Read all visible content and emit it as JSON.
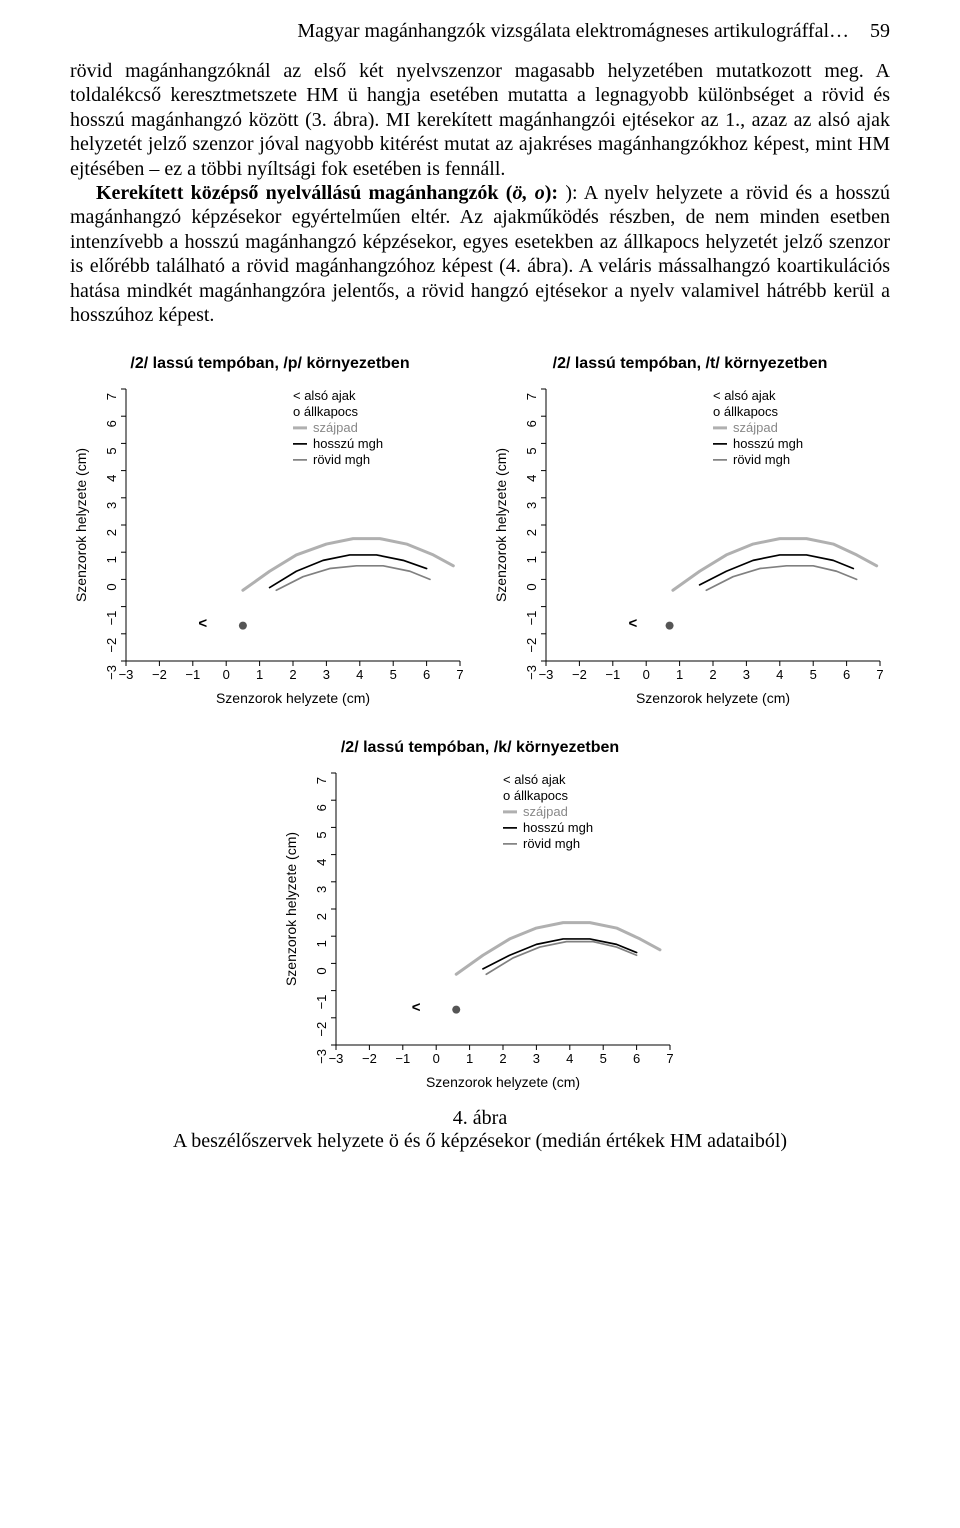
{
  "header": {
    "running_title": "Magyar magánhangzók vizsgálata elektromágneses artikulográffal…",
    "page_number": "59"
  },
  "paragraphs": {
    "p1": "rövid magánhangzóknál az első két nyelvszenzor magasabb helyzetében mutatkozott meg. A toldalékcső keresztmetszete HM ü hangja esetében mutatta a legnagyobb különbséget a rövid és hosszú magánhangzó között (3. ábra). MI kerekített magánhangzói ejtésekor az 1., azaz az alsó ajak helyzetét jelző szenzor jóval nagyobb kitérést mutat az ajakréses magánhangzókhoz képest, mint HM ejtésében – ez a többi nyíltsági fok esetében is fennáll.",
    "p2_lead": "Kerekített középső nyelvállású magánhangzók (",
    "p2_ital": "ö, o",
    "p2_rest": "): A nyelv helyzete a rövid és a hosszú magánhangzó képzésekor egyértelműen eltér. Az ajakműködés részben, de nem minden esetben intenzívebb a hosszú magánhangzó képzésekor, egyes esetekben az állkapocs helyzetét jelző szenzor is előrébb található a rövid magánhangzóhoz képest (4. ábra). A veláris mássalhangzó koartikulációs hatása mindkét magánhangzóra jelentős, a rövid hangzó ejtésekor a nyelv valamivel hátrébb kerül a hosszúhoz képest."
  },
  "caption": {
    "fig_num": "4. ábra",
    "fig_text": "A beszélőszervek helyzete ö és ő képzésekor (medián értékek HM adataiból)"
  },
  "chart_common": {
    "x_label": "Szenzorok helyzete (cm)",
    "y_label": "Szenzorok helyzete (cm)",
    "ticks": [
      "−3",
      "−2",
      "−1",
      "0",
      "1",
      "2",
      "3",
      "4",
      "5",
      "6",
      "7"
    ],
    "tick_vals": [
      -3,
      -2,
      -1,
      0,
      1,
      2,
      3,
      4,
      5,
      6,
      7
    ],
    "xlim": [
      -3,
      7
    ],
    "ylim": [
      -3,
      7
    ],
    "legend": {
      "l1_sym": "<",
      "l1": "alsó ajak",
      "l2_sym": "o",
      "l2": "állkapocs",
      "l3": "szájpad",
      "l4": "hosszú mgh",
      "l5": "rövid mgh"
    },
    "colors": {
      "axis": "#000000",
      "szajpad": "#b0b0b0",
      "hosszu": "#000000",
      "rovid": "#808080",
      "marker": "#000000",
      "marker_fill": "#555555",
      "bg": "#ffffff"
    },
    "line_width_szajpad": 3.0,
    "line_width_curve": 1.7
  },
  "charts": [
    {
      "title": "/2/ lassú tempóban, /p/ környezetben",
      "lip_x": -0.7,
      "lip_y": -1.6,
      "jaw_x": 0.5,
      "jaw_y": -1.7,
      "szajpad": [
        [
          0.5,
          -0.4
        ],
        [
          1.3,
          0.3
        ],
        [
          2.1,
          0.9
        ],
        [
          3.0,
          1.3
        ],
        [
          3.8,
          1.5
        ],
        [
          4.6,
          1.5
        ],
        [
          5.4,
          1.3
        ],
        [
          6.2,
          0.9
        ],
        [
          6.8,
          0.5
        ]
      ],
      "hosszu": [
        [
          1.3,
          -0.3
        ],
        [
          2.1,
          0.3
        ],
        [
          2.9,
          0.7
        ],
        [
          3.7,
          0.9
        ],
        [
          4.5,
          0.9
        ],
        [
          5.3,
          0.7
        ],
        [
          6.0,
          0.4
        ]
      ],
      "rovid": [
        [
          1.5,
          -0.4
        ],
        [
          2.3,
          0.1
        ],
        [
          3.1,
          0.4
        ],
        [
          3.9,
          0.5
        ],
        [
          4.7,
          0.5
        ],
        [
          5.5,
          0.3
        ],
        [
          6.1,
          0.0
        ]
      ]
    },
    {
      "title": "/2/ lassú tempóban, /t/ környezetben",
      "lip_x": -0.4,
      "lip_y": -1.6,
      "jaw_x": 0.7,
      "jaw_y": -1.7,
      "szajpad": [
        [
          0.8,
          -0.4
        ],
        [
          1.6,
          0.3
        ],
        [
          2.4,
          0.9
        ],
        [
          3.2,
          1.3
        ],
        [
          4.0,
          1.5
        ],
        [
          4.8,
          1.5
        ],
        [
          5.6,
          1.3
        ],
        [
          6.3,
          0.9
        ],
        [
          6.9,
          0.5
        ]
      ],
      "hosszu": [
        [
          1.6,
          -0.2
        ],
        [
          2.4,
          0.3
        ],
        [
          3.2,
          0.7
        ],
        [
          4.0,
          0.9
        ],
        [
          4.8,
          0.9
        ],
        [
          5.6,
          0.7
        ],
        [
          6.2,
          0.4
        ]
      ],
      "rovid": [
        [
          1.8,
          -0.4
        ],
        [
          2.6,
          0.1
        ],
        [
          3.4,
          0.4
        ],
        [
          4.2,
          0.5
        ],
        [
          5.0,
          0.5
        ],
        [
          5.7,
          0.3
        ],
        [
          6.3,
          0.0
        ]
      ]
    },
    {
      "title": "/2/ lassú tempóban, /k/ környezetben",
      "lip_x": -0.6,
      "lip_y": -1.6,
      "jaw_x": 0.6,
      "jaw_y": -1.7,
      "szajpad": [
        [
          0.6,
          -0.4
        ],
        [
          1.4,
          0.3
        ],
        [
          2.2,
          0.9
        ],
        [
          3.0,
          1.3
        ],
        [
          3.8,
          1.5
        ],
        [
          4.6,
          1.5
        ],
        [
          5.4,
          1.3
        ],
        [
          6.1,
          0.9
        ],
        [
          6.7,
          0.5
        ]
      ],
      "hosszu": [
        [
          1.4,
          -0.2
        ],
        [
          2.2,
          0.3
        ],
        [
          3.0,
          0.7
        ],
        [
          3.8,
          0.9
        ],
        [
          4.6,
          0.9
        ],
        [
          5.4,
          0.7
        ],
        [
          6.0,
          0.4
        ]
      ],
      "rovid": [
        [
          1.5,
          -0.4
        ],
        [
          2.3,
          0.2
        ],
        [
          3.1,
          0.6
        ],
        [
          3.9,
          0.8
        ],
        [
          4.7,
          0.8
        ],
        [
          5.4,
          0.6
        ],
        [
          6.0,
          0.3
        ]
      ]
    }
  ]
}
